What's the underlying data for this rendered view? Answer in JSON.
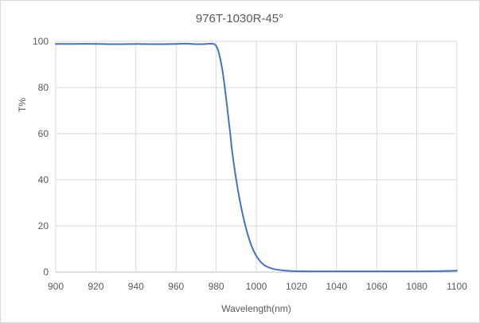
{
  "chart_data": {
    "type": "line",
    "title": "976T-1030R-45°",
    "xlabel": "Wavelength(nm)",
    "ylabel": "T%",
    "xlim": [
      900,
      1100
    ],
    "ylim": [
      0,
      100
    ],
    "xticks": [
      "900",
      "920",
      "940",
      "960",
      "980",
      "1000",
      "1020",
      "1040",
      "1060",
      "1080",
      "1100"
    ],
    "yticks": [
      "0",
      "20",
      "40",
      "60",
      "80",
      "100"
    ],
    "grid": true,
    "legend": "none",
    "line_color": "#4472c4",
    "series": [
      {
        "x": [
          900,
          910,
          920,
          930,
          940,
          950,
          960,
          965,
          970,
          974,
          977,
          979,
          980,
          981,
          982,
          983,
          984,
          985,
          986,
          987,
          988,
          990,
          992,
          994,
          996,
          998,
          1000,
          1002,
          1004,
          1006,
          1008,
          1010,
          1015,
          1020,
          1030,
          1040,
          1060,
          1080,
          1090,
          1100
        ],
        "y": [
          98.9,
          98.9,
          98.9,
          98.8,
          98.9,
          98.8,
          98.9,
          99.0,
          98.8,
          98.8,
          99.0,
          98.8,
          98.0,
          96.0,
          92.5,
          88.0,
          82.0,
          75.0,
          67.5,
          60.0,
          52.0,
          40.0,
          30.0,
          22.0,
          15.5,
          10.5,
          7.0,
          4.6,
          3.0,
          2.1,
          1.5,
          1.1,
          0.6,
          0.4,
          0.3,
          0.3,
          0.3,
          0.3,
          0.4,
          0.6
        ]
      }
    ]
  }
}
